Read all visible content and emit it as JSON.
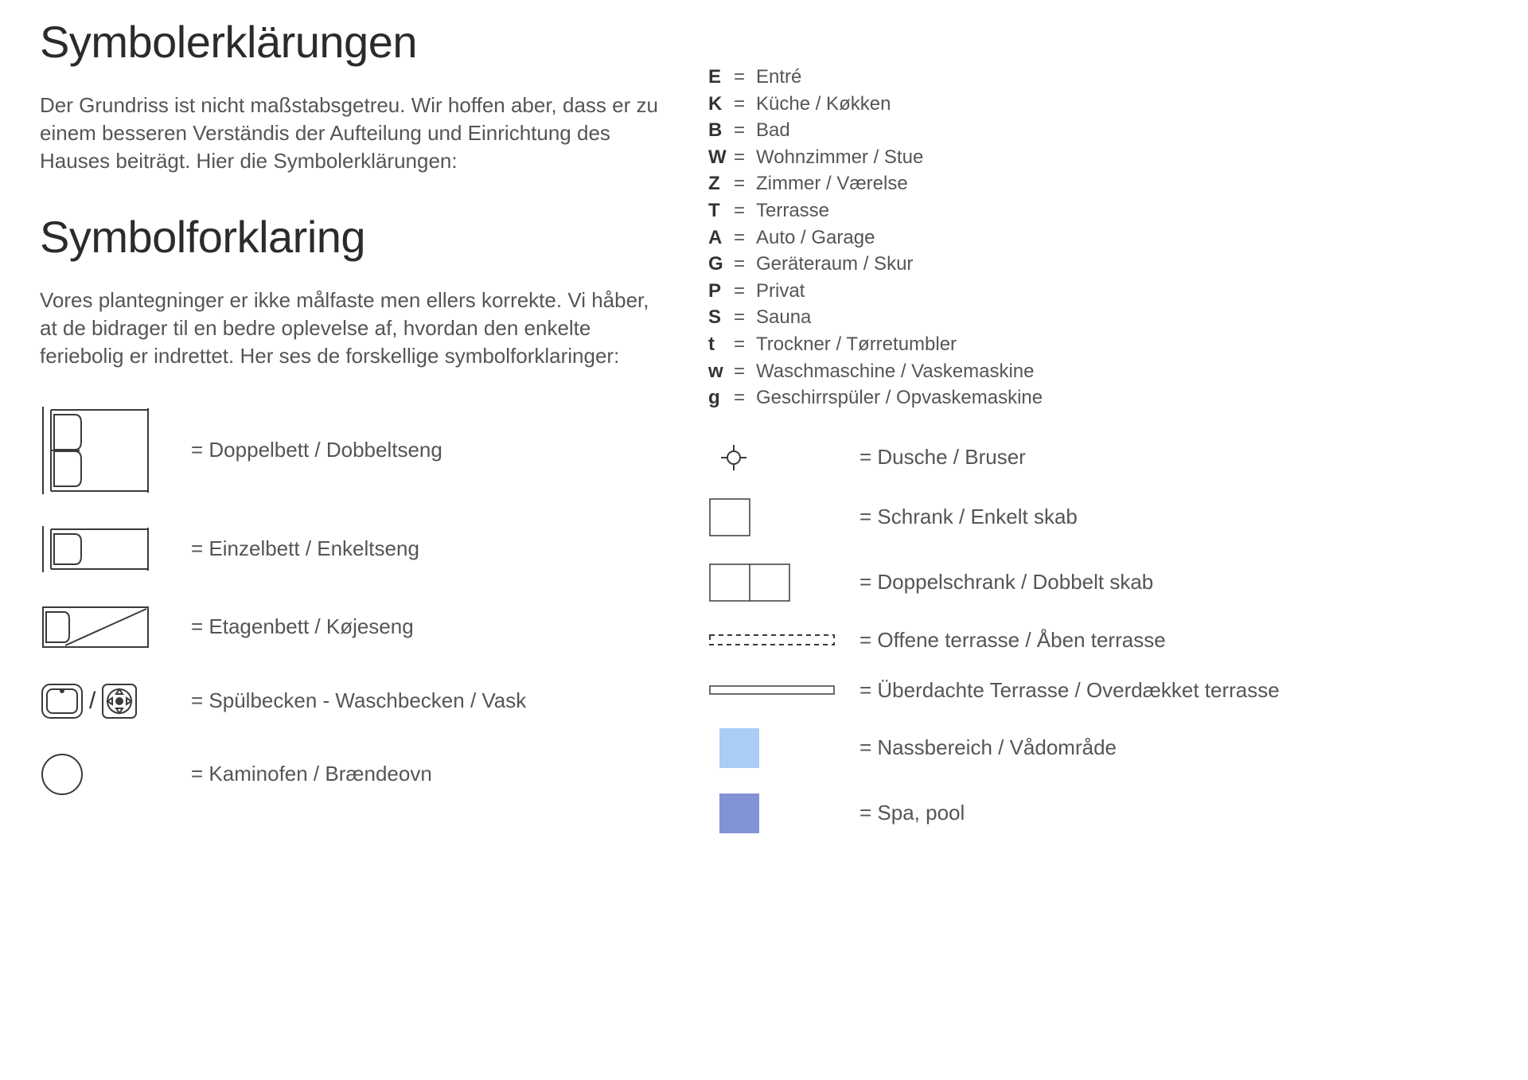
{
  "colors": {
    "text": "#3a3a3a",
    "muted": "#555",
    "stroke": "#3a3a3a",
    "wet_area": "#a9cdf5",
    "spa": "#8193d6",
    "bg": "#ffffff"
  },
  "title_de": "Symbolerklärungen",
  "intro_de": "Der Grundriss ist nicht maßstabsgetreu. Wir hoffen aber, dass er zu einem besseren Verständis der Aufteilung und Einrichtung des Hauses beiträgt. Hier die Symbolerklärungen:",
  "title_dk": "Symbolforklaring",
  "intro_dk": "Vores plantegninger er ikke målfaste men ellers korrekte. Vi håber, at de bidrager til en bedre oplevelse af, hvordan den enkelte feriebolig er indrettet. Her ses de forskellige symbolforklaringer:",
  "left_symbols": {
    "double_bed": "= Doppelbett / Dobbeltseng",
    "single_bed": "= Einzelbett / Enkeltseng",
    "bunk_bed": "= Etagenbett / Køjeseng",
    "sink": "= Spülbecken - Waschbecken / Vask",
    "stove": "= Kaminofen / Brændeovn"
  },
  "abbr": [
    {
      "k": "E",
      "v": "Entré"
    },
    {
      "k": "K",
      "v": "Küche / Køkken"
    },
    {
      "k": "B",
      "v": "Bad"
    },
    {
      "k": "W",
      "v": "Wohnzimmer / Stue"
    },
    {
      "k": "Z",
      "v": "Zimmer / Værelse"
    },
    {
      "k": "T",
      "v": "Terrasse"
    },
    {
      "k": "A",
      "v": "Auto / Garage"
    },
    {
      "k": "G",
      "v": "Geräteraum / Skur"
    },
    {
      "k": "P",
      "v": "Privat"
    },
    {
      "k": "S",
      "v": "Sauna"
    },
    {
      "k": "t",
      "v": "Trockner / Tørretumbler"
    },
    {
      "k": "w",
      "v": "Waschmaschine / Vaskemaskine"
    },
    {
      "k": "g",
      "v": "Geschirrspüler / Opvaskemaskine"
    }
  ],
  "right_symbols": {
    "shower": "= Dusche / Bruser",
    "closet": "= Schrank / Enkelt skab",
    "double_closet": "= Doppelschrank / Dobbelt skab",
    "open_terrace": "= Offene terrasse / Åben terrasse",
    "covered_terrace": "= Überdachte Terrasse / Overdækket terrasse",
    "wet_area": "= Nassbereich / Vådområde",
    "spa": "= Spa, pool"
  }
}
